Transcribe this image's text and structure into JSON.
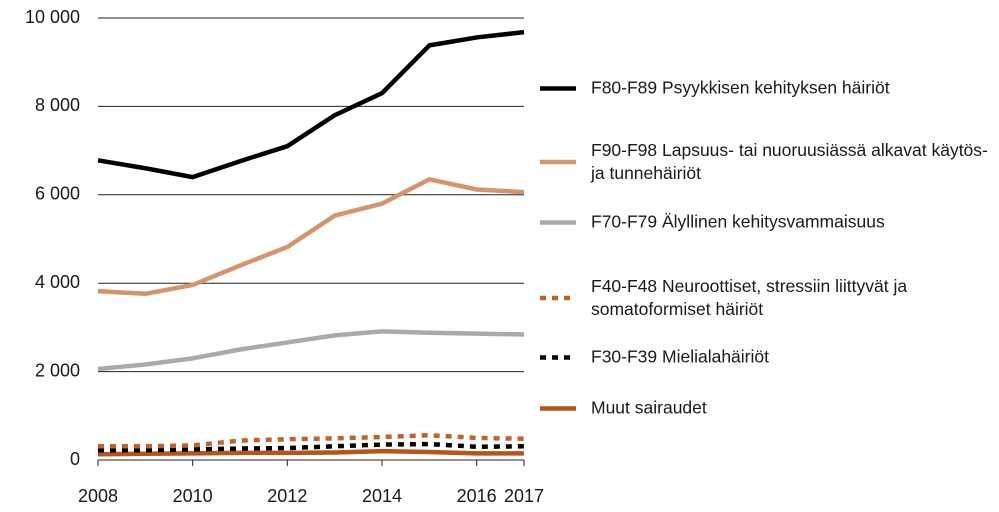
{
  "chart_data": {
    "type": "line",
    "x": [
      2008,
      2009,
      2010,
      2011,
      2012,
      2013,
      2014,
      2015,
      2016,
      2017
    ],
    "xlim": [
      2008,
      2017
    ],
    "xticks": [
      2008,
      2010,
      2012,
      2014,
      2016,
      2017
    ],
    "ylim": [
      0,
      10000
    ],
    "yticks": [
      0,
      {
        "value": 2000,
        "label": "2 000"
      },
      {
        "value": 4000,
        "label": "4 000"
      },
      {
        "value": 6000,
        "label": "6 000"
      },
      {
        "value": 8000,
        "label": "8 000"
      },
      {
        "value": 10000,
        "label": "10 000"
      }
    ],
    "grid": true,
    "series": [
      {
        "name": "F80-F89 Psyykkisen kehityksen häiriöt",
        "color": "#000000",
        "style": "solid",
        "values": [
          6780,
          6600,
          6400,
          6760,
          7100,
          7800,
          8300,
          9380,
          9560,
          9680
        ]
      },
      {
        "name": "F90-F98 Lapsuus- tai nuoruusiässä alkavat käytös- ja tunnehäiriöt",
        "color": "#d4956a",
        "style": "solid",
        "values": [
          3820,
          3760,
          3960,
          4400,
          4820,
          5530,
          5800,
          6350,
          6120,
          6060
        ]
      },
      {
        "name": "F70-F79 Älyllinen kehitysvammaisuus",
        "color": "#aaaaaa",
        "style": "solid",
        "values": [
          2060,
          2160,
          2300,
          2500,
          2660,
          2820,
          2910,
          2880,
          2860,
          2840
        ]
      },
      {
        "name": "F40-F48 Neuroottiset, stressiin liittyvät ja somatoformiset häiriöt",
        "color": "#c0622a",
        "style": "dotted",
        "values": [
          310,
          310,
          330,
          440,
          470,
          490,
          520,
          560,
          500,
          480
        ]
      },
      {
        "name": "F30-F39 Mielialahäiriöt",
        "color": "#000000",
        "style": "dotted",
        "values": [
          220,
          220,
          240,
          260,
          270,
          310,
          350,
          360,
          300,
          310
        ]
      },
      {
        "name": "Muut sairaudet",
        "color": "#b5541c",
        "style": "solid",
        "values": [
          130,
          140,
          150,
          160,
          160,
          170,
          200,
          180,
          150,
          150
        ]
      }
    ]
  }
}
